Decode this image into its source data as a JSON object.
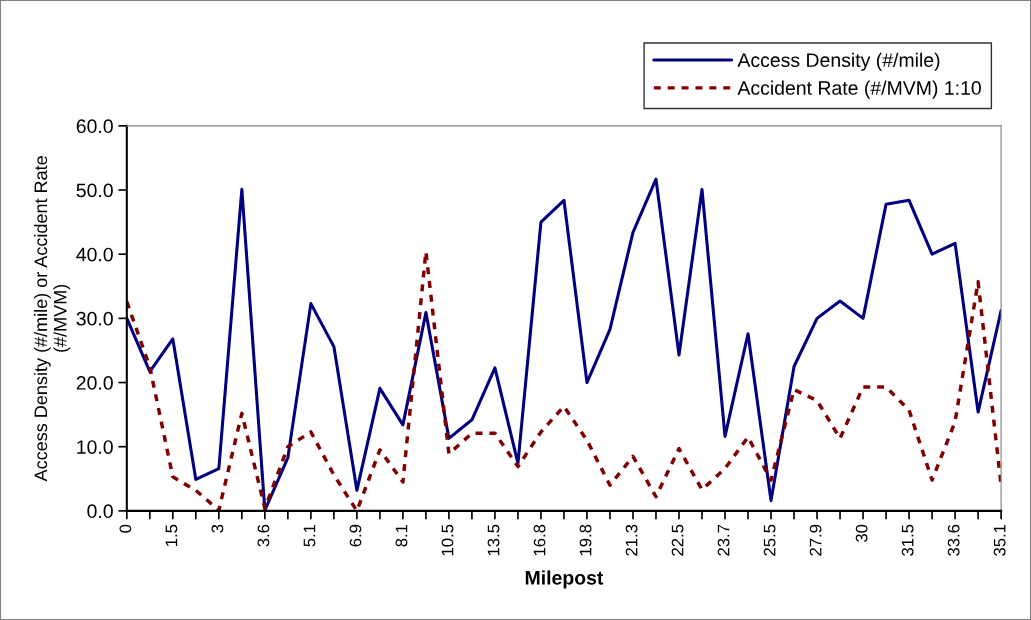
{
  "chart_data": {
    "type": "line",
    "xlabel": "Milepost",
    "ylabel": "Access Density (#/mile) or Accident Rate\n(#/MVM)",
    "categories": [
      "0",
      null,
      "1.5",
      null,
      "3",
      null,
      "3.6",
      null,
      "5.1",
      null,
      "6.9",
      null,
      "8.1",
      null,
      "10.5",
      null,
      "13.5",
      null,
      "16.8",
      null,
      "19.8",
      null,
      "21.3",
      null,
      "22.5",
      null,
      "23.7",
      null,
      "25.5",
      null,
      "27.9",
      null,
      "30",
      null,
      "31.5",
      null,
      "33.6",
      null,
      "35.1"
    ],
    "series": [
      {
        "name": "Access Density (#/mile)",
        "color": "#000080",
        "line_style": "solid",
        "values": [
          30.0,
          21.7,
          26.8,
          4.9,
          6.6,
          50.1,
          0.1,
          8.3,
          32.3,
          25.6,
          3.2,
          19.1,
          13.4,
          30.9,
          11.3,
          14.2,
          22.3,
          7.4,
          45.0,
          48.4,
          20.0,
          28.3,
          43.4,
          51.7,
          24.3,
          50.1,
          11.6,
          27.6,
          1.6,
          22.5,
          30.0,
          32.7,
          30.0,
          47.8,
          48.4,
          40.0,
          41.7,
          15.4,
          31.2
        ]
      },
      {
        "name": "Accident Rate (#/MVM) 1:10",
        "color": "#800000",
        "line_style": "dotted",
        "values": [
          32.6,
          22.4,
          5.3,
          3.2,
          0.1,
          15.2,
          0.4,
          10.0,
          12.3,
          5.6,
          0.0,
          9.5,
          4.5,
          40.4,
          8.9,
          12.1,
          12.1,
          6.9,
          12.3,
          16.3,
          11.0,
          4.0,
          8.5,
          2.2,
          9.7,
          3.3,
          6.6,
          11.5,
          4.8,
          18.9,
          17.2,
          11.3,
          19.3,
          19.3,
          15.7,
          4.8,
          13.9,
          35.7,
          4.0
        ]
      }
    ],
    "ylim": [
      0,
      60
    ],
    "yticks": [
      {
        "value": 0,
        "label": "0.0"
      },
      {
        "value": 10,
        "label": "10.0"
      },
      {
        "value": 20,
        "label": "20.0"
      },
      {
        "value": 30,
        "label": "30.0"
      },
      {
        "value": 40,
        "label": "40.0"
      },
      {
        "value": 50,
        "label": "50.0"
      },
      {
        "value": 60,
        "label": "60.0"
      }
    ],
    "grid": false,
    "legend": "top right",
    "marker": "none"
  }
}
